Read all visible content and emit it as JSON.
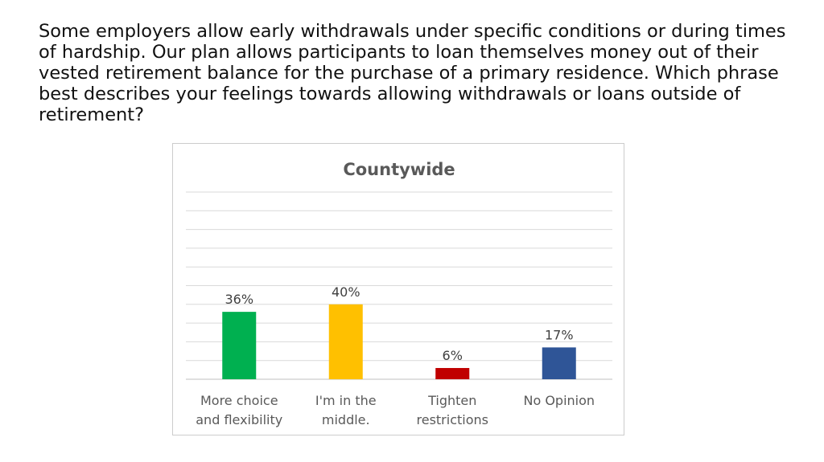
{
  "slide": {
    "question": "Some employers allow early withdrawals under specific conditions or during times of hardship. Our plan allows participants to loan themselves money out of their vested retirement balance for the purchase of a primary residence. Which phrase best describes your feelings towards allowing withdrawals or loans outside of retirement?"
  },
  "chart_data": {
    "type": "bar",
    "title": "Countywide",
    "categories": [
      [
        "More choice",
        "and flexibility"
      ],
      [
        "I'm in the",
        "middle."
      ],
      [
        "Tighten",
        "restrictions"
      ],
      [
        "No Opinion"
      ]
    ],
    "values": [
      36,
      40,
      6,
      17
    ],
    "value_labels": [
      "36%",
      "40%",
      "6%",
      "17%"
    ],
    "colors": [
      "#00b050",
      "#ffc000",
      "#c00000",
      "#2f5597"
    ],
    "ylim": [
      0,
      100
    ],
    "grid": true,
    "legend": "none"
  }
}
